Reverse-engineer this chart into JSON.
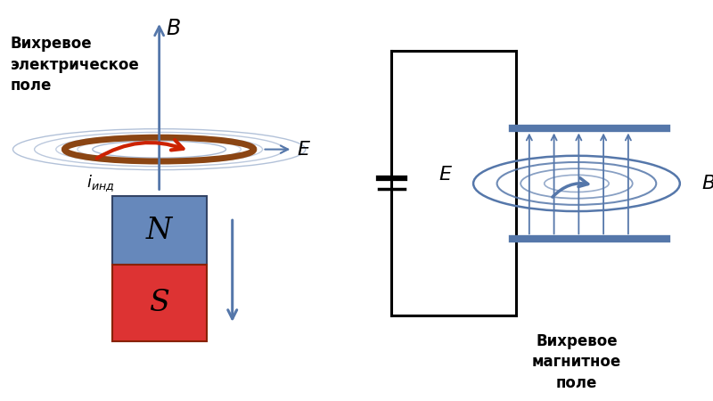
{
  "bg_color": "#ffffff",
  "blue_color": "#5577aa",
  "red_color": "#cc2200",
  "brown_color": "#8B4513",
  "left_vortex_label": "Вихревое\nэлектрическое\nполе",
  "right_vortex_label": "Вихревое\nмагнитное\nполе",
  "N_color": "#6688bb",
  "S_color": "#dd3333"
}
